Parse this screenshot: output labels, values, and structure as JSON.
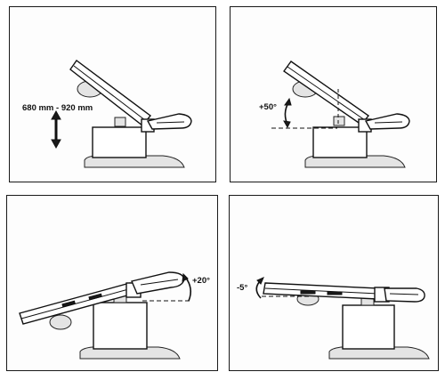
{
  "panels": [
    {
      "id": "height-adjustment",
      "label": "680 mm - 920 mm"
    },
    {
      "id": "backrest-tilt",
      "label": "+50°"
    },
    {
      "id": "tilt-positive",
      "label": "+20°"
    },
    {
      "id": "tilt-negative",
      "label": "-5°"
    }
  ]
}
